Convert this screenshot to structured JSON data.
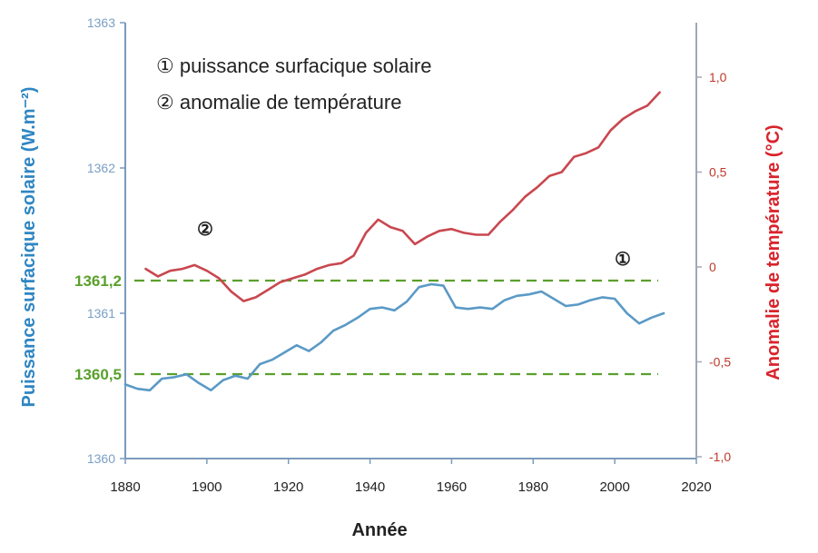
{
  "chart_data": {
    "type": "line",
    "title": "",
    "xlabel": "Année",
    "ylabel_left": "Puissance surfacique solaire (W.m⁻²)",
    "ylabel_right": "Anomalie de température (°C)",
    "xlim": [
      1880,
      2020
    ],
    "ylim_left": [
      1360,
      1363
    ],
    "ylim_right": [
      -1.0,
      1.3
    ],
    "x_ticks": [
      "1880",
      "1900",
      "1920",
      "1940",
      "1960",
      "1980",
      "2000",
      "2020"
    ],
    "y_left_ticks": [
      "1360",
      "1361",
      "1362",
      "1363"
    ],
    "y_right_ticks": [
      "-1,0",
      "-0,5",
      "0",
      "0,5",
      "1,0"
    ],
    "legend": [
      "① puissance surfacique solaire",
      "② anomalie de température"
    ],
    "markers": [
      "①",
      "②"
    ],
    "reference_lines": [
      {
        "label": "1361,2",
        "value": 1361.2,
        "color": "#5aa02c"
      },
      {
        "label": "1360,5",
        "value": 1360.5,
        "color": "#5aa02c"
      }
    ],
    "colors": {
      "solar": "#5b9ac6",
      "temperature": "#c9474f",
      "reference": "#5aa02c"
    },
    "series": [
      {
        "name": "puissance surfacique solaire",
        "axis": "left",
        "x": [
          1880,
          1883,
          1886,
          1889,
          1892,
          1895,
          1898,
          1901,
          1904,
          1907,
          1910,
          1913,
          1916,
          1919,
          1922,
          1925,
          1928,
          1931,
          1934,
          1937,
          1940,
          1943,
          1946,
          1949,
          1952,
          1955,
          1958,
          1961,
          1964,
          1967,
          1970,
          1973,
          1976,
          1979,
          1982,
          1985,
          1988,
          1991,
          1994,
          1997,
          2000,
          2003,
          2006,
          2009,
          2012
        ],
        "values": [
          1360.51,
          1360.48,
          1360.47,
          1360.55,
          1360.56,
          1360.58,
          1360.52,
          1360.47,
          1360.54,
          1360.57,
          1360.55,
          1360.65,
          1360.68,
          1360.73,
          1360.78,
          1360.74,
          1360.8,
          1360.88,
          1360.92,
          1360.97,
          1361.03,
          1361.04,
          1361.02,
          1361.08,
          1361.18,
          1361.2,
          1361.19,
          1361.04,
          1361.03,
          1361.04,
          1361.03,
          1361.09,
          1361.12,
          1361.13,
          1361.15,
          1361.1,
          1361.05,
          1361.06,
          1361.09,
          1361.11,
          1361.1,
          1361.0,
          1360.93,
          1360.97,
          1361.0
        ]
      },
      {
        "name": "anomalie de température",
        "axis": "right",
        "x": [
          1885,
          1888,
          1891,
          1894,
          1897,
          1900,
          1903,
          1906,
          1909,
          1912,
          1915,
          1918,
          1921,
          1924,
          1927,
          1930,
          1933,
          1936,
          1939,
          1942,
          1945,
          1948,
          1951,
          1954,
          1957,
          1960,
          1963,
          1966,
          1969,
          1972,
          1975,
          1978,
          1981,
          1984,
          1987,
          1990,
          1993,
          1996,
          1999,
          2002,
          2005,
          2008,
          2011
        ],
        "values": [
          -0.01,
          -0.05,
          -0.02,
          -0.01,
          0.01,
          -0.02,
          -0.06,
          -0.13,
          -0.18,
          -0.16,
          -0.12,
          -0.08,
          -0.06,
          -0.04,
          -0.01,
          0.01,
          0.02,
          0.06,
          0.18,
          0.25,
          0.21,
          0.19,
          0.12,
          0.16,
          0.19,
          0.2,
          0.18,
          0.17,
          0.17,
          0.24,
          0.3,
          0.37,
          0.42,
          0.48,
          0.5,
          0.58,
          0.6,
          0.63,
          0.72,
          0.78,
          0.82,
          0.85,
          0.92
        ]
      }
    ]
  }
}
